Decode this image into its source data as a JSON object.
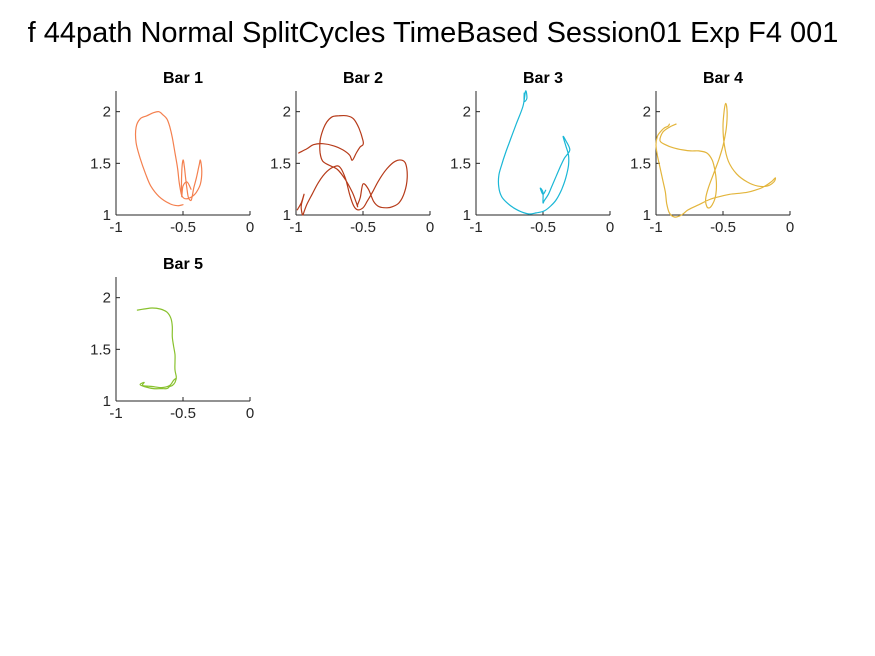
{
  "figure": {
    "title": "f 44path Normal SplitCycles TimeBased Session01 Exp F4 001"
  },
  "chart_data": [
    {
      "type": "line",
      "title": "Bar 1",
      "color": "#f4804f",
      "xlim": [
        -1,
        0
      ],
      "ylim": [
        1,
        2.2
      ],
      "xticks": [
        -1,
        -0.5,
        0
      ],
      "xtick_labels": [
        "-1",
        "-0.5",
        "0"
      ],
      "yticks": [
        1,
        1.5,
        2
      ],
      "ytick_labels": [
        "1",
        "1.5",
        "2"
      ],
      "grid": false,
      "series": [
        {
          "x": [
            -0.5,
            -0.54,
            -0.6,
            -0.68,
            -0.74,
            -0.78,
            -0.82,
            -0.85,
            -0.85,
            -0.82,
            -0.77,
            -0.72,
            -0.68,
            -0.65,
            -0.62,
            -0.6,
            -0.58,
            -0.56,
            -0.54,
            -0.53,
            -0.52,
            -0.51,
            -0.49,
            -0.46,
            -0.43,
            -0.4,
            -0.37,
            -0.36,
            -0.37,
            -0.38,
            -0.4,
            -0.42,
            -0.43,
            -0.44,
            -0.46,
            -0.47,
            -0.48,
            -0.49,
            -0.5,
            -0.51,
            -0.51,
            -0.5,
            -0.47,
            -0.44
          ],
          "y": [
            1.1,
            1.09,
            1.11,
            1.18,
            1.28,
            1.4,
            1.55,
            1.7,
            1.85,
            1.93,
            1.96,
            1.99,
            2.0,
            1.97,
            1.93,
            1.86,
            1.75,
            1.6,
            1.45,
            1.33,
            1.25,
            1.19,
            1.16,
            1.16,
            1.18,
            1.22,
            1.3,
            1.42,
            1.53,
            1.48,
            1.36,
            1.26,
            1.19,
            1.14,
            1.17,
            1.25,
            1.35,
            1.47,
            1.53,
            1.4,
            1.18,
            1.28,
            1.32,
            1.25
          ]
        }
      ]
    },
    {
      "type": "line",
      "title": "Bar 2",
      "color": "#b63b1a",
      "xlim": [
        -1,
        0
      ],
      "ylim": [
        1,
        2.2
      ],
      "xticks": [
        -1,
        -0.5,
        0
      ],
      "xtick_labels": [
        "-1",
        "-0.5",
        "0"
      ],
      "yticks": [
        1,
        1.5,
        2
      ],
      "ytick_labels": [
        "1",
        "1.5",
        "2"
      ],
      "grid": false,
      "series": [
        {
          "x": [
            -0.98,
            -0.92,
            -0.87,
            -0.8,
            -0.72,
            -0.65,
            -0.6,
            -0.58,
            -0.55,
            -0.52,
            -0.5,
            -0.5,
            -0.53,
            -0.57,
            -0.62,
            -0.68,
            -0.73,
            -0.77,
            -0.8,
            -0.82,
            -0.82,
            -0.8,
            -0.75,
            -0.69,
            -0.63,
            -0.58,
            -0.55,
            -0.54,
            -0.54,
            -0.52,
            -0.5,
            -0.46,
            -0.42,
            -0.38,
            -0.32,
            -0.28,
            -0.23,
            -0.19,
            -0.17,
            -0.18,
            -0.21,
            -0.26,
            -0.32,
            -0.38,
            -0.43,
            -0.47,
            -0.5,
            -0.54,
            -0.57,
            -0.6,
            -0.63,
            -0.67,
            -0.71,
            -0.77,
            -0.83,
            -0.88,
            -0.92,
            -0.94,
            -0.95,
            -0.96,
            -0.96,
            -0.95,
            -0.94,
            -0.96,
            -0.99
          ],
          "y": [
            1.6,
            1.64,
            1.68,
            1.69,
            1.67,
            1.63,
            1.58,
            1.53,
            1.6,
            1.66,
            1.68,
            1.72,
            1.84,
            1.93,
            1.96,
            1.96,
            1.95,
            1.9,
            1.82,
            1.72,
            1.6,
            1.52,
            1.48,
            1.44,
            1.34,
            1.22,
            1.12,
            1.08,
            1.1,
            1.17,
            1.3,
            1.25,
            1.13,
            1.08,
            1.07,
            1.08,
            1.12,
            1.22,
            1.36,
            1.49,
            1.53,
            1.52,
            1.45,
            1.34,
            1.22,
            1.13,
            1.07,
            1.05,
            1.09,
            1.2,
            1.35,
            1.46,
            1.47,
            1.42,
            1.32,
            1.2,
            1.1,
            1.03,
            1.0,
            1.05,
            1.1,
            1.15,
            1.2,
            1.12,
            1.05
          ]
        }
      ]
    },
    {
      "type": "line",
      "title": "Bar 3",
      "color": "#1ab7d6",
      "xlim": [
        -1,
        0
      ],
      "ylim": [
        1,
        2.2
      ],
      "xticks": [
        -1,
        -0.5,
        0
      ],
      "xtick_labels": [
        "-1",
        "-0.5",
        "0"
      ],
      "yticks": [
        1,
        1.5,
        2
      ],
      "ytick_labels": [
        "1",
        "1.5",
        "2"
      ],
      "grid": false,
      "series": [
        {
          "x": [
            -0.64,
            -0.64,
            -0.62,
            -0.63,
            -0.65,
            -0.7,
            -0.74,
            -0.78,
            -0.81,
            -0.83,
            -0.83,
            -0.81,
            -0.77,
            -0.72,
            -0.66,
            -0.6,
            -0.55,
            -0.49,
            -0.44,
            -0.4,
            -0.36,
            -0.33,
            -0.31,
            -0.31,
            -0.33,
            -0.35,
            -0.33,
            -0.3,
            -0.34,
            -0.37,
            -0.4,
            -0.43,
            -0.46,
            -0.49,
            -0.5,
            -0.5,
            -0.52,
            -0.5,
            -0.48
          ],
          "y": [
            2.18,
            2.1,
            2.13,
            2.2,
            2.05,
            1.88,
            1.74,
            1.6,
            1.48,
            1.38,
            1.27,
            1.18,
            1.12,
            1.07,
            1.03,
            1.01,
            1.02,
            1.04,
            1.09,
            1.15,
            1.25,
            1.36,
            1.48,
            1.58,
            1.67,
            1.76,
            1.72,
            1.63,
            1.55,
            1.47,
            1.38,
            1.29,
            1.2,
            1.14,
            1.12,
            1.22,
            1.26,
            1.2,
            1.24
          ]
        }
      ]
    },
    {
      "type": "line",
      "title": "Bar 4",
      "color": "#e3b53c",
      "xlim": [
        -1,
        0
      ],
      "ylim": [
        1,
        2.2
      ],
      "xticks": [
        -1,
        -0.5,
        0
      ],
      "xtick_labels": [
        "-1",
        "-0.5",
        "0"
      ],
      "yticks": [
        1,
        1.5,
        2
      ],
      "ytick_labels": [
        "1",
        "1.5",
        "2"
      ],
      "grid": false,
      "series": [
        {
          "x": [
            -0.85,
            -0.9,
            -0.95,
            -0.97,
            -0.93,
            -0.87,
            -0.8,
            -0.74,
            -0.68,
            -0.62,
            -0.58,
            -0.56,
            -0.55,
            -0.55,
            -0.56,
            -0.58,
            -0.6,
            -0.62,
            -0.63,
            -0.61,
            -0.57,
            -0.53,
            -0.5,
            -0.48,
            -0.47,
            -0.47,
            -0.48,
            -0.49,
            -0.5,
            -0.49,
            -0.46,
            -0.4,
            -0.32,
            -0.24,
            -0.17,
            -0.12,
            -0.11,
            -0.14,
            -0.2,
            -0.26,
            -0.32,
            -0.38,
            -0.45,
            -0.52,
            -0.6,
            -0.68,
            -0.76,
            -0.81,
            -0.86,
            -0.9,
            -0.92,
            -0.93,
            -0.95,
            -0.97,
            -0.99,
            -1.0,
            -0.99,
            -0.97,
            -0.94,
            -0.91,
            -0.9
          ],
          "y": [
            1.88,
            1.85,
            1.8,
            1.72,
            1.68,
            1.65,
            1.63,
            1.62,
            1.62,
            1.6,
            1.53,
            1.43,
            1.33,
            1.24,
            1.16,
            1.1,
            1.07,
            1.08,
            1.15,
            1.26,
            1.4,
            1.54,
            1.67,
            1.8,
            1.92,
            2.02,
            2.08,
            2.02,
            1.86,
            1.68,
            1.52,
            1.4,
            1.32,
            1.28,
            1.28,
            1.32,
            1.36,
            1.32,
            1.27,
            1.24,
            1.22,
            1.21,
            1.2,
            1.18,
            1.15,
            1.1,
            1.05,
            1.0,
            0.98,
            1.02,
            1.11,
            1.22,
            1.34,
            1.46,
            1.58,
            1.68,
            1.76,
            1.8,
            1.84,
            1.86,
            1.88
          ]
        }
      ]
    },
    {
      "type": "line",
      "title": "Bar 5",
      "color": "#88c12d",
      "xlim": [
        -1,
        0
      ],
      "ylim": [
        1,
        2.2
      ],
      "xticks": [
        -1,
        -0.5,
        0
      ],
      "xtick_labels": [
        "-1",
        "-0.5",
        "0"
      ],
      "yticks": [
        1,
        1.5,
        2
      ],
      "ytick_labels": [
        "1",
        "1.5",
        "2"
      ],
      "grid": false,
      "series": [
        {
          "x": [
            -0.84,
            -0.79,
            -0.73,
            -0.67,
            -0.62,
            -0.59,
            -0.58,
            -0.58,
            -0.57,
            -0.56,
            -0.56,
            -0.56,
            -0.55,
            -0.56,
            -0.58,
            -0.6,
            -0.62,
            -0.66,
            -0.72,
            -0.79,
            -0.82,
            -0.79,
            -0.8,
            -0.73,
            -0.66,
            -0.6,
            -0.57,
            -0.55
          ],
          "y": [
            1.88,
            1.89,
            1.9,
            1.89,
            1.86,
            1.8,
            1.72,
            1.62,
            1.53,
            1.45,
            1.38,
            1.3,
            1.23,
            1.18,
            1.15,
            1.14,
            1.12,
            1.12,
            1.12,
            1.14,
            1.16,
            1.18,
            1.15,
            1.14,
            1.13,
            1.15,
            1.2,
            1.22
          ]
        }
      ]
    }
  ]
}
